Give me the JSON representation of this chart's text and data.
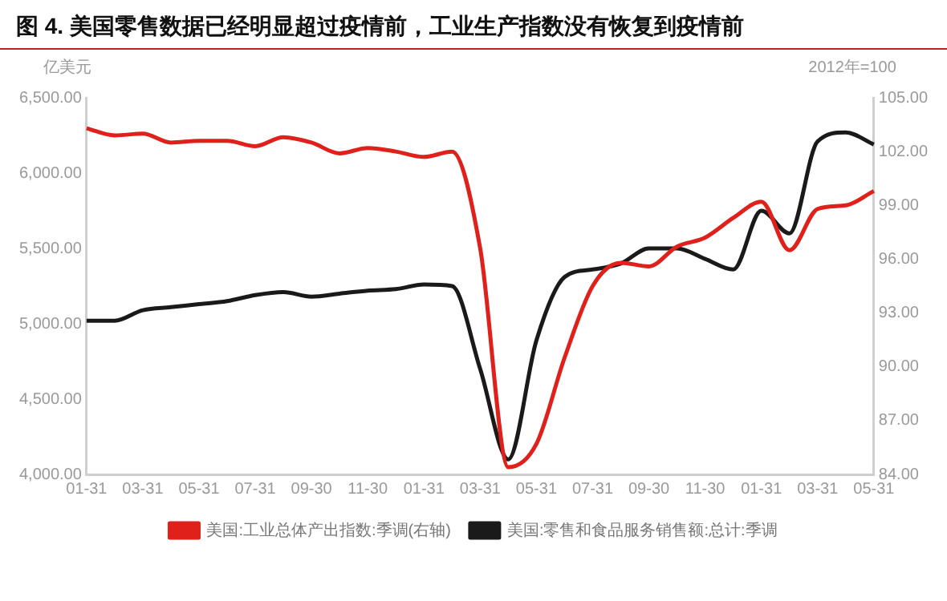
{
  "chart_data": {
    "type": "line",
    "title": "图 4. 美国零售数据已经明显超过疫情前，工业生产指数没有恢复到疫情前",
    "ylabel": "亿美元",
    "y2label": "2012年=100",
    "categories": [
      "01-31",
      null,
      "03-31",
      null,
      "05-31",
      null,
      "07-31",
      null,
      "09-30",
      null,
      "11-30",
      null,
      "01-31",
      null,
      "03-31",
      null,
      "05-31",
      null,
      "07-31",
      null,
      "09-30",
      null,
      "11-30",
      null,
      "01-31",
      null,
      "03-31",
      null,
      "05-31"
    ],
    "series": [
      {
        "name": "美国:工业总体产出指数:季调(右轴)",
        "color": "#e0201b",
        "axis": "y2",
        "values": [
          103.3,
          102.9,
          103.0,
          102.5,
          102.6,
          102.6,
          102.3,
          102.8,
          102.5,
          101.9,
          102.2,
          102.0,
          101.7,
          102.0,
          96.6,
          84.4,
          85.7,
          90.5,
          94.5,
          95.8,
          95.6,
          96.7,
          97.2,
          98.3,
          99.2,
          96.5,
          98.8,
          99.0,
          99.8
        ]
      },
      {
        "name": "美国:零售和食品服务销售额:总计:季调",
        "color": "#1a1a1a",
        "values": [
          5020,
          5020,
          5090,
          5110,
          5130,
          5150,
          5190,
          5210,
          5180,
          5200,
          5220,
          5230,
          5260,
          5250,
          4700,
          4100,
          4890,
          5310,
          5360,
          5400,
          5500,
          5500,
          5430,
          5360,
          5750,
          5600,
          6210,
          6270,
          6190
        ]
      }
    ],
    "ylim": [
      4000,
      6500
    ],
    "yticks": [
      {
        "value": 4000,
        "label": "4,000.00"
      },
      {
        "value": 4500,
        "label": "4,500.00"
      },
      {
        "value": 5000,
        "label": "5,000.00"
      },
      {
        "value": 5500,
        "label": "5,500.00"
      },
      {
        "value": 6000,
        "label": "6,000.00"
      },
      {
        "value": 6500,
        "label": "6,500.00"
      }
    ],
    "y2lim": [
      84,
      105
    ],
    "y2ticks": [
      {
        "value": 84,
        "label": "84.00"
      },
      {
        "value": 87,
        "label": "87.00"
      },
      {
        "value": 90,
        "label": "90.00"
      },
      {
        "value": 93,
        "label": "93.00"
      },
      {
        "value": 96,
        "label": "96.00"
      },
      {
        "value": 99,
        "label": "99.00"
      },
      {
        "value": 102,
        "label": "102.00"
      },
      {
        "value": 105,
        "label": "105.00"
      }
    ],
    "legend": "bottom",
    "grid": false,
    "marker": "none",
    "line_style": "solid"
  }
}
